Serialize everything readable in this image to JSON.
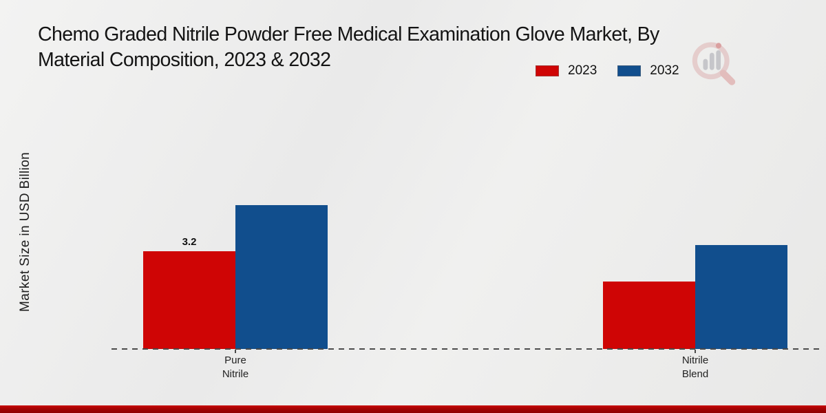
{
  "header": {
    "title_lines": [
      "Chemo Graded Nitrile Powder Free Medical Examination Glove Market, By",
      "Material Composition, 2023 & 2032"
    ]
  },
  "watermark": {
    "icon": "magnifier-bar-chart-logo"
  },
  "chart_data": {
    "type": "bar",
    "title": "Chemo Graded Nitrile Powder Free Medical Examination Glove Market, By Material Composition, 2023 & 2032",
    "xlabel": "",
    "ylabel": "Market Size in USD Billion",
    "units": "USD Billion",
    "categories": [
      "Pure Nitrile",
      "Nitrile Blend"
    ],
    "category_label_lines": [
      [
        "Pure",
        "Nitrile"
      ],
      [
        "Nitrile",
        "Blend"
      ]
    ],
    "series": [
      {
        "name": "2023",
        "color": "#cf0505",
        "values": [
          3.2,
          2.2
        ],
        "value_labels": [
          "3.2",
          ""
        ]
      },
      {
        "name": "2032",
        "color": "#114e8d",
        "values": [
          4.7,
          3.4
        ],
        "value_labels": [
          "",
          ""
        ]
      }
    ],
    "ylim": [
      0,
      5.5
    ],
    "grid": false,
    "legend_position": "top-right",
    "baseline_style": "dashed",
    "y_axis_ticks_visible": false
  },
  "theme": {
    "background": "#ebebeb",
    "footer_bar_red": "#a30303",
    "axis_line_color": "#4b4b4b",
    "text_color": "#141414",
    "watermark_ring": "#ddadad",
    "watermark_bars": "#a0a0a8",
    "watermark_handle": "#d98e8e",
    "watermark_dot": "#c95555"
  }
}
